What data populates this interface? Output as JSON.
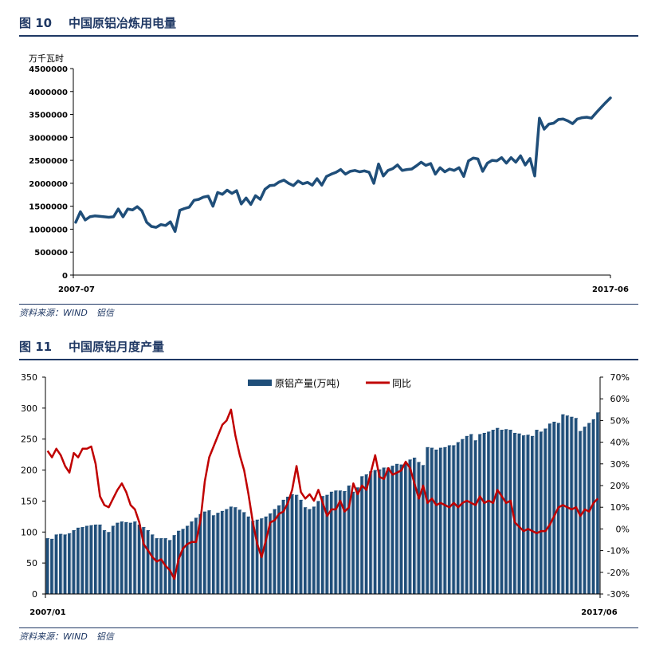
{
  "figure10": {
    "number": "图 10",
    "title": "中国原铝冶炼用电量",
    "source": "资料来源：WIND　铝信",
    "chart_data": {
      "type": "line",
      "unit_label": "万千瓦时",
      "y_ticks": [
        "4500000",
        "4000000",
        "3500000",
        "3000000",
        "2500000",
        "2000000",
        "1500000",
        "1000000",
        "500000",
        "0"
      ],
      "ylim": [
        0,
        4500000
      ],
      "x_labels": [
        "2007-07",
        "2017-06"
      ],
      "series": [
        {
          "color": "#1f4e79",
          "values": [
            1150000,
            1380000,
            1200000,
            1270000,
            1290000,
            1280000,
            1270000,
            1260000,
            1270000,
            1440000,
            1270000,
            1440000,
            1420000,
            1490000,
            1400000,
            1150000,
            1060000,
            1040000,
            1100000,
            1080000,
            1160000,
            950000,
            1410000,
            1450000,
            1480000,
            1630000,
            1650000,
            1700000,
            1720000,
            1500000,
            1800000,
            1760000,
            1850000,
            1780000,
            1840000,
            1550000,
            1680000,
            1540000,
            1730000,
            1650000,
            1870000,
            1950000,
            1960000,
            2030000,
            2070000,
            2000000,
            1950000,
            2050000,
            1990000,
            2020000,
            1960000,
            2100000,
            1960000,
            2150000,
            2200000,
            2240000,
            2300000,
            2200000,
            2260000,
            2280000,
            2250000,
            2270000,
            2240000,
            2000000,
            2420000,
            2160000,
            2280000,
            2320000,
            2400000,
            2280000,
            2300000,
            2310000,
            2380000,
            2460000,
            2390000,
            2430000,
            2200000,
            2340000,
            2250000,
            2310000,
            2280000,
            2340000,
            2150000,
            2490000,
            2550000,
            2530000,
            2260000,
            2440000,
            2500000,
            2490000,
            2560000,
            2440000,
            2560000,
            2460000,
            2600000,
            2400000,
            2540000,
            2160000,
            3420000,
            3180000,
            3290000,
            3310000,
            3390000,
            3400000,
            3360000,
            3300000,
            3400000,
            3430000,
            3440000,
            3420000,
            3540000,
            3650000,
            3760000,
            3860000
          ]
        }
      ]
    }
  },
  "figure11": {
    "number": "图 11",
    "title": "中国原铝月度产量",
    "source": "资料来源：WIND　铝信",
    "chart_data": {
      "type": "bar",
      "legend": [
        "原铝产量(万吨)",
        "同比"
      ],
      "left_ticks": [
        "350",
        "300",
        "250",
        "200",
        "150",
        "100",
        "50",
        "0"
      ],
      "right_ticks": [
        "70%",
        "60%",
        "50%",
        "40%",
        "30%",
        "20%",
        "10%",
        "0%",
        "-10%",
        "-20%",
        "-30%"
      ],
      "ylim_left": [
        0,
        350
      ],
      "ylim_right": [
        -30,
        70
      ],
      "x_labels": [
        "2007/01",
        "2017/06"
      ],
      "series": [
        {
          "name": "原铝产量(万吨)",
          "color": "#1f4e79",
          "values": [
            90,
            89,
            96,
            97,
            96,
            98,
            103,
            107,
            108,
            110,
            111,
            112,
            112,
            103,
            100,
            110,
            115,
            117,
            116,
            115,
            117,
            112,
            108,
            103,
            96,
            90,
            90,
            90,
            87,
            95,
            102,
            105,
            110,
            117,
            123,
            129,
            133,
            135,
            127,
            131,
            134,
            137,
            141,
            140,
            136,
            132,
            125,
            118,
            120,
            122,
            125,
            130,
            137,
            143,
            152,
            157,
            161,
            160,
            152,
            140,
            137,
            141,
            150,
            158,
            160,
            165,
            167,
            167,
            166,
            175,
            165,
            172,
            190,
            193,
            198,
            200,
            201,
            204,
            204,
            207,
            210,
            209,
            211,
            217,
            220,
            213,
            208,
            237,
            236,
            233,
            236,
            237,
            240,
            240,
            245,
            250,
            255,
            258,
            248,
            258,
            260,
            262,
            265,
            268,
            265,
            266,
            265,
            260,
            259,
            256,
            257,
            255,
            265,
            262,
            267,
            275,
            278,
            276,
            290,
            288,
            286,
            284,
            263,
            270,
            276,
            282,
            293
          ]
        },
        {
          "name": "同比",
          "color": "#c00000",
          "values": [
            36,
            33,
            37,
            34,
            29,
            26,
            35,
            33,
            37,
            37,
            38,
            30,
            15,
            11,
            10,
            14,
            18,
            21,
            17,
            11,
            9,
            3,
            -7,
            -10,
            -13,
            -15,
            -14,
            -17,
            -19,
            -23,
            -14,
            -9,
            -7,
            -6,
            -6,
            4,
            22,
            33,
            38,
            43,
            48,
            50,
            55,
            43,
            34,
            27,
            16,
            3,
            -7,
            -13,
            -5,
            3,
            4,
            7,
            8,
            12,
            18,
            29,
            17,
            14,
            16,
            13,
            18,
            12,
            6,
            9,
            9,
            13,
            8,
            10,
            21,
            16,
            20,
            18,
            26,
            34,
            24,
            23,
            28,
            25,
            26,
            27,
            31,
            28,
            21,
            14,
            20,
            12,
            14,
            11,
            12,
            11,
            10,
            12,
            10,
            12,
            13,
            12,
            11,
            15,
            12,
            13,
            12,
            18,
            15,
            12,
            13,
            3,
            1,
            -1,
            0,
            -1,
            -2,
            -1,
            -1,
            2,
            6,
            10,
            11,
            10,
            9,
            10,
            6,
            9,
            8,
            12,
            14
          ]
        }
      ]
    }
  }
}
